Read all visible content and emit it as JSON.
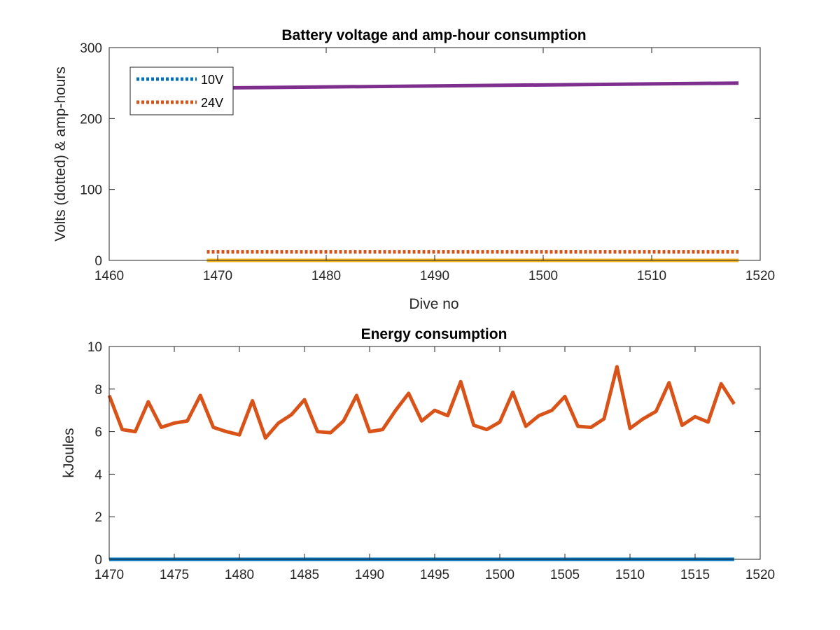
{
  "chart_data": [
    {
      "type": "line",
      "title": "Battery voltage and amp-hour consumption",
      "xlabel": "Dive no",
      "ylabel": "Volts (dotted) & amp-hours",
      "xlim": [
        1460,
        1520
      ],
      "ylim": [
        0,
        300
      ],
      "xticks": [
        1460,
        1470,
        1480,
        1490,
        1500,
        1510,
        1520
      ],
      "yticks": [
        0,
        100,
        200,
        300
      ],
      "grid": false,
      "legend_location": "top-left",
      "series": [
        {
          "name": "10V",
          "style": "dotted",
          "color": "#0072BD",
          "x": [
            1469,
            1518
          ],
          "y": [
            12,
            12
          ]
        },
        {
          "name": "24V",
          "style": "dotted",
          "color": "#D95319",
          "x": [
            1469,
            1518
          ],
          "y": [
            12,
            12
          ]
        },
        {
          "style": "solid",
          "color": "#EDB120",
          "x": [
            1469,
            1518
          ],
          "y": [
            0,
            0
          ]
        },
        {
          "style": "solid",
          "color": "#7E2F8E",
          "x": [
            1469,
            1518
          ],
          "y": [
            243,
            250
          ]
        }
      ]
    },
    {
      "type": "line",
      "title": "Energy consumption",
      "xlabel": "",
      "ylabel": "kJoules",
      "xlim": [
        1470,
        1520
      ],
      "ylim": [
        0,
        10
      ],
      "xticks": [
        1470,
        1475,
        1480,
        1485,
        1490,
        1495,
        1500,
        1505,
        1510,
        1515,
        1520
      ],
      "yticks": [
        0,
        2,
        4,
        6,
        8,
        10
      ],
      "grid": false,
      "series": [
        {
          "style": "solid",
          "color": "#0072BD",
          "x": [
            1470,
            1518
          ],
          "y": [
            0,
            0
          ]
        },
        {
          "style": "solid",
          "color": "#D95319",
          "x": [
            1470,
            1471,
            1472,
            1473,
            1474,
            1475,
            1476,
            1477,
            1478,
            1479,
            1480,
            1481,
            1482,
            1483,
            1484,
            1485,
            1486,
            1487,
            1488,
            1489,
            1490,
            1491,
            1492,
            1493,
            1494,
            1495,
            1496,
            1497,
            1498,
            1499,
            1500,
            1501,
            1502,
            1503,
            1504,
            1505,
            1506,
            1507,
            1508,
            1509,
            1510,
            1511,
            1512,
            1513,
            1514,
            1515,
            1516,
            1517,
            1518
          ],
          "y": [
            7.7,
            6.1,
            6.0,
            7.4,
            6.2,
            6.4,
            6.5,
            7.7,
            6.2,
            6.0,
            5.85,
            7.45,
            5.7,
            6.4,
            6.8,
            7.5,
            6.0,
            5.95,
            6.5,
            7.7,
            6.0,
            6.1,
            7.0,
            7.8,
            6.5,
            7.0,
            6.75,
            8.35,
            6.3,
            6.1,
            6.45,
            7.85,
            6.25,
            6.75,
            7.0,
            7.65,
            6.25,
            6.2,
            6.6,
            9.05,
            6.15,
            6.6,
            6.95,
            8.3,
            6.3,
            6.7,
            6.45,
            8.25,
            7.3
          ]
        }
      ]
    }
  ]
}
